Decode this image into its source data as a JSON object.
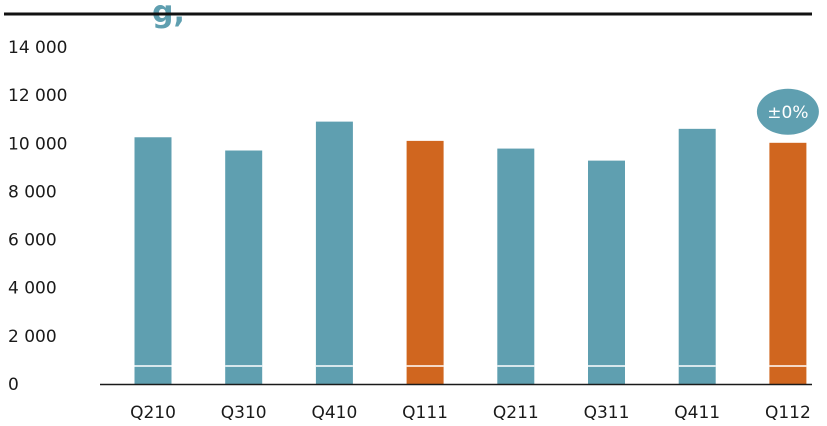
{
  "header": {
    "title_fragment": "g,",
    "title_color": "#5f9fb0",
    "rule_color": "#111111"
  },
  "chart_data": {
    "type": "bar",
    "categories": [
      "Q210",
      "Q310",
      "Q410",
      "Q111",
      "Q211",
      "Q311",
      "Q411",
      "Q112"
    ],
    "values": [
      10250,
      9700,
      10900,
      10100,
      9780,
      9280,
      10600,
      10020
    ],
    "highlighted": [
      false,
      false,
      false,
      true,
      false,
      false,
      false,
      true
    ],
    "ylim": [
      0,
      14000
    ],
    "yticks": [
      0,
      2000,
      4000,
      6000,
      8000,
      10000,
      12000,
      14000
    ],
    "ytick_labels": [
      "0",
      "2 000",
      "4 000",
      "6 000",
      "8 000",
      "10 000",
      "12 000",
      "14 000"
    ],
    "grid": false,
    "colors": {
      "base": "#5f9fb0",
      "highlight": "#d0661f",
      "badge": "#5f9fb0"
    },
    "annotation": {
      "text": "±0%",
      "category": "Q112"
    }
  }
}
